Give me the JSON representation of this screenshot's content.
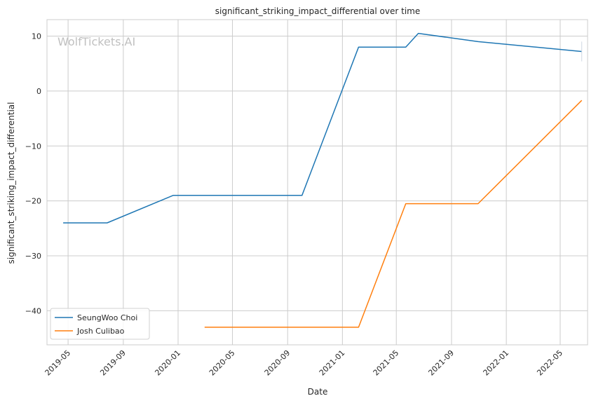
{
  "chart_data": {
    "type": "line",
    "title": "significant_striking_impact_differential over time",
    "xlabel": "Date",
    "ylabel": "significant_striking_impact_differential",
    "watermark": "WolfTickets.AI",
    "x_range": [
      "2019-03-15",
      "2022-07-01"
    ],
    "ylim": [
      -46.2,
      13.0
    ],
    "x_ticks": [
      "2019-05",
      "2019-09",
      "2020-01",
      "2020-05",
      "2020-09",
      "2021-01",
      "2021-05",
      "2021-09",
      "2022-01",
      "2022-05"
    ],
    "y_ticks": [
      10,
      0,
      -10,
      -20,
      -30,
      -40
    ],
    "y_tick_labels": [
      "10",
      "0",
      "−10",
      "−20",
      "−30",
      "−40"
    ],
    "grid": true,
    "legend_position": "lower-left",
    "series": [
      {
        "name": "SeungWoo Choi",
        "color": "#1f77b4",
        "points": [
          {
            "x": "2019-04-20",
            "y": -24.0
          },
          {
            "x": "2019-07-27",
            "y": -24.0
          },
          {
            "x": "2019-12-21",
            "y": -19.0
          },
          {
            "x": "2020-10-03",
            "y": -19.0
          },
          {
            "x": "2021-02-06",
            "y": 8.0
          },
          {
            "x": "2021-05-22",
            "y": 8.0
          },
          {
            "x": "2021-06-19",
            "y": 10.5
          },
          {
            "x": "2021-10-30",
            "y": 9.0
          },
          {
            "x": "2022-06-18",
            "y": 7.2
          }
        ]
      },
      {
        "name": "Josh Culibao",
        "color": "#ff7f0e",
        "points": [
          {
            "x": "2020-02-29",
            "y": -43.0
          },
          {
            "x": "2021-02-06",
            "y": -43.0
          },
          {
            "x": "2021-05-22",
            "y": -20.5
          },
          {
            "x": "2021-10-30",
            "y": -20.5
          },
          {
            "x": "2022-06-18",
            "y": -1.7
          }
        ]
      }
    ]
  }
}
